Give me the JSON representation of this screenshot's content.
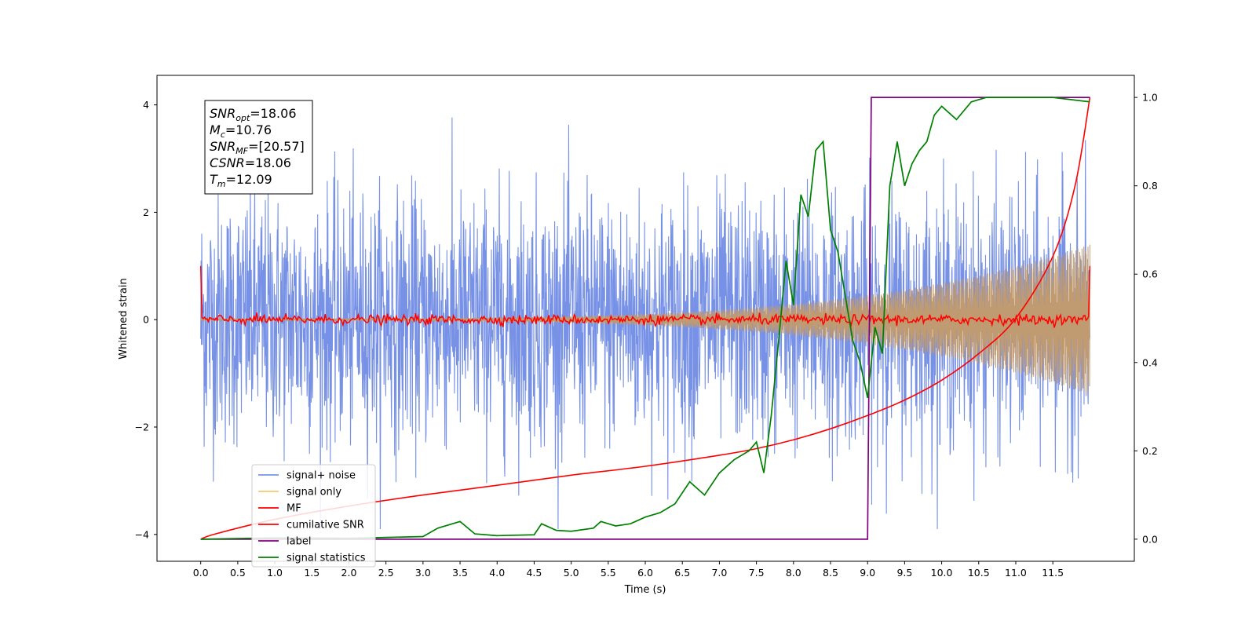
{
  "chart_data": {
    "type": "line",
    "title": "",
    "xlabel": "Time (s)",
    "ylabel": "Whitened strain",
    "y2label": "",
    "xlim": [
      -0.59,
      12.6
    ],
    "ylim": [
      -4.5,
      4.55
    ],
    "y2lim": [
      -0.05,
      1.05
    ],
    "grid": false,
    "legend_position": "lower-left",
    "x_ticks": [
      "0.0",
      "0.5",
      "1.0",
      "1.5",
      "2.0",
      "2.5",
      "3.0",
      "3.5",
      "4.0",
      "4.5",
      "5.0",
      "5.5",
      "6.0",
      "6.5",
      "7.0",
      "7.5",
      "8.0",
      "8.5",
      "9.0",
      "9.5",
      "10.0",
      "10.5",
      "11.0",
      "11.5"
    ],
    "y_ticks": [
      "4",
      "2",
      "0",
      "−2",
      "−4"
    ],
    "y2_ticks": [
      "1.0",
      "0.8",
      "0.6",
      "0.4",
      "0.2",
      "0.0"
    ],
    "annotation": [
      {
        "name": "SNR",
        "sub": "opt",
        "value": "=18.06"
      },
      {
        "name": "M",
        "sub": "c",
        "value": "=10.76"
      },
      {
        "name": "SNR",
        "sub": "MF",
        "value": "=[20.57]"
      },
      {
        "name": "CSNR",
        "sub": "",
        "value": "=18.06"
      },
      {
        "name": "T",
        "sub": "m",
        "value": "=12.09"
      }
    ],
    "series": [
      {
        "name": "signal+ noise",
        "color": "#6b88e4",
        "axis": "left",
        "kind": "noise",
        "x_range": [
          0,
          12.0
        ],
        "sigma": 1.0
      },
      {
        "name": "signal only",
        "color": "#f5c870",
        "axis": "left",
        "kind": "chirp",
        "x_range": [
          0,
          12.0
        ],
        "amplitude_start": 0.02,
        "amplitude_end": 1.4
      },
      {
        "name": "MF",
        "color": "#ff0000",
        "axis": "left",
        "kind": "mf",
        "x_range": [
          0,
          12.0
        ],
        "start_value": 1.0,
        "end_value": 1.0,
        "level": 0.0
      },
      {
        "name": "cumilative SNR",
        "color": "#ff0000",
        "axis": "right",
        "x": [
          0.0,
          0.2,
          1.0,
          2.0,
          3.0,
          4.0,
          5.0,
          6.0,
          7.0,
          7.5,
          8.0,
          8.5,
          9.0,
          9.5,
          10.0,
          10.5,
          11.0,
          11.5,
          11.8,
          12.0
        ],
        "y": [
          0.0,
          0.012,
          0.045,
          0.075,
          0.1,
          0.122,
          0.145,
          0.165,
          0.19,
          0.205,
          0.225,
          0.25,
          0.28,
          0.315,
          0.36,
          0.42,
          0.5,
          0.64,
          0.8,
          1.0
        ]
      },
      {
        "name": "label",
        "color": "#800080",
        "axis": "right",
        "x": [
          0.0,
          9.0,
          9.05,
          12.0
        ],
        "y": [
          0.0,
          0.0,
          1.0,
          1.0
        ]
      },
      {
        "name": "signal statistics",
        "color": "#008000",
        "axis": "right",
        "x": [
          0.0,
          1.0,
          2.0,
          2.5,
          3.0,
          3.2,
          3.5,
          3.7,
          4.0,
          4.5,
          4.6,
          4.8,
          5.0,
          5.3,
          5.4,
          5.6,
          5.8,
          6.0,
          6.2,
          6.4,
          6.6,
          6.8,
          7.0,
          7.2,
          7.4,
          7.5,
          7.6,
          7.7,
          7.8,
          7.9,
          8.0,
          8.1,
          8.2,
          8.3,
          8.4,
          8.5,
          8.6,
          8.7,
          8.8,
          8.9,
          9.0,
          9.1,
          9.2,
          9.3,
          9.4,
          9.5,
          9.6,
          9.7,
          9.8,
          9.9,
          10.0,
          10.2,
          10.4,
          10.6,
          11.0,
          11.5,
          12.0
        ],
        "y": [
          0.0,
          0.003,
          0.002,
          0.004,
          0.006,
          0.025,
          0.04,
          0.012,
          0.008,
          0.01,
          0.035,
          0.02,
          0.018,
          0.025,
          0.04,
          0.03,
          0.035,
          0.05,
          0.06,
          0.08,
          0.13,
          0.1,
          0.15,
          0.18,
          0.2,
          0.22,
          0.15,
          0.28,
          0.45,
          0.63,
          0.53,
          0.78,
          0.73,
          0.88,
          0.9,
          0.7,
          0.65,
          0.55,
          0.45,
          0.4,
          0.32,
          0.48,
          0.42,
          0.8,
          0.9,
          0.8,
          0.85,
          0.88,
          0.9,
          0.96,
          0.98,
          0.95,
          0.99,
          1.0,
          1.0,
          1.0,
          0.99
        ]
      }
    ]
  }
}
